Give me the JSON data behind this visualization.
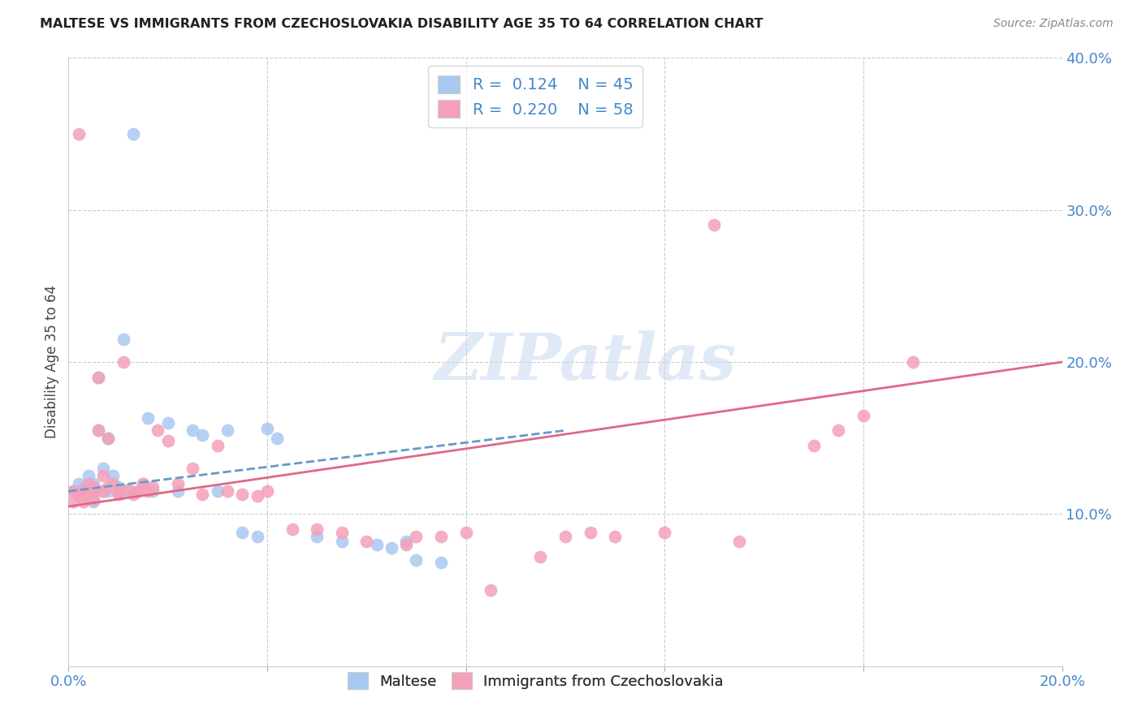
{
  "title": "MALTESE VS IMMIGRANTS FROM CZECHOSLOVAKIA DISABILITY AGE 35 TO 64 CORRELATION CHART",
  "source": "Source: ZipAtlas.com",
  "ylabel": "Disability Age 35 to 64",
  "xlim": [
    0.0,
    0.2
  ],
  "ylim": [
    0.0,
    0.4
  ],
  "legend_R1": "0.124",
  "legend_N1": "45",
  "legend_R2": "0.220",
  "legend_N2": "58",
  "color_blue": "#A8C8F0",
  "color_pink": "#F4A0B8",
  "line_blue": "#6699CC",
  "line_pink": "#E06888",
  "blue_x": [
    0.001,
    0.002,
    0.002,
    0.003,
    0.003,
    0.003,
    0.004,
    0.004,
    0.004,
    0.005,
    0.005,
    0.005,
    0.006,
    0.006,
    0.007,
    0.007,
    0.008,
    0.008,
    0.009,
    0.01,
    0.01,
    0.011,
    0.012,
    0.013,
    0.014,
    0.015,
    0.016,
    0.017,
    0.02,
    0.022,
    0.025,
    0.027,
    0.03,
    0.032,
    0.035,
    0.038,
    0.04,
    0.042,
    0.05,
    0.055,
    0.062,
    0.065,
    0.068,
    0.07,
    0.075
  ],
  "blue_y": [
    0.115,
    0.12,
    0.113,
    0.115,
    0.112,
    0.118,
    0.116,
    0.112,
    0.125,
    0.115,
    0.108,
    0.12,
    0.19,
    0.155,
    0.115,
    0.13,
    0.15,
    0.115,
    0.125,
    0.115,
    0.118,
    0.215,
    0.115,
    0.35,
    0.115,
    0.12,
    0.163,
    0.115,
    0.16,
    0.115,
    0.155,
    0.152,
    0.115,
    0.155,
    0.088,
    0.085,
    0.156,
    0.15,
    0.085,
    0.082,
    0.08,
    0.078,
    0.082,
    0.07,
    0.068
  ],
  "pink_x": [
    0.001,
    0.001,
    0.002,
    0.002,
    0.003,
    0.003,
    0.003,
    0.004,
    0.004,
    0.005,
    0.005,
    0.005,
    0.006,
    0.006,
    0.007,
    0.007,
    0.008,
    0.008,
    0.009,
    0.01,
    0.01,
    0.011,
    0.012,
    0.013,
    0.014,
    0.015,
    0.016,
    0.017,
    0.018,
    0.02,
    0.022,
    0.025,
    0.027,
    0.03,
    0.032,
    0.035,
    0.038,
    0.04,
    0.045,
    0.05,
    0.055,
    0.06,
    0.068,
    0.07,
    0.075,
    0.08,
    0.085,
    0.095,
    0.1,
    0.105,
    0.11,
    0.12,
    0.13,
    0.135,
    0.15,
    0.155,
    0.16,
    0.17
  ],
  "pink_y": [
    0.115,
    0.108,
    0.35,
    0.112,
    0.116,
    0.113,
    0.108,
    0.114,
    0.12,
    0.115,
    0.11,
    0.118,
    0.19,
    0.155,
    0.125,
    0.115,
    0.15,
    0.118,
    0.12,
    0.115,
    0.113,
    0.2,
    0.116,
    0.113,
    0.115,
    0.12,
    0.115,
    0.118,
    0.155,
    0.148,
    0.12,
    0.13,
    0.113,
    0.145,
    0.115,
    0.113,
    0.112,
    0.115,
    0.09,
    0.09,
    0.088,
    0.082,
    0.08,
    0.085,
    0.085,
    0.088,
    0.05,
    0.072,
    0.085,
    0.088,
    0.085,
    0.088,
    0.29,
    0.082,
    0.145,
    0.155,
    0.165,
    0.2
  ]
}
